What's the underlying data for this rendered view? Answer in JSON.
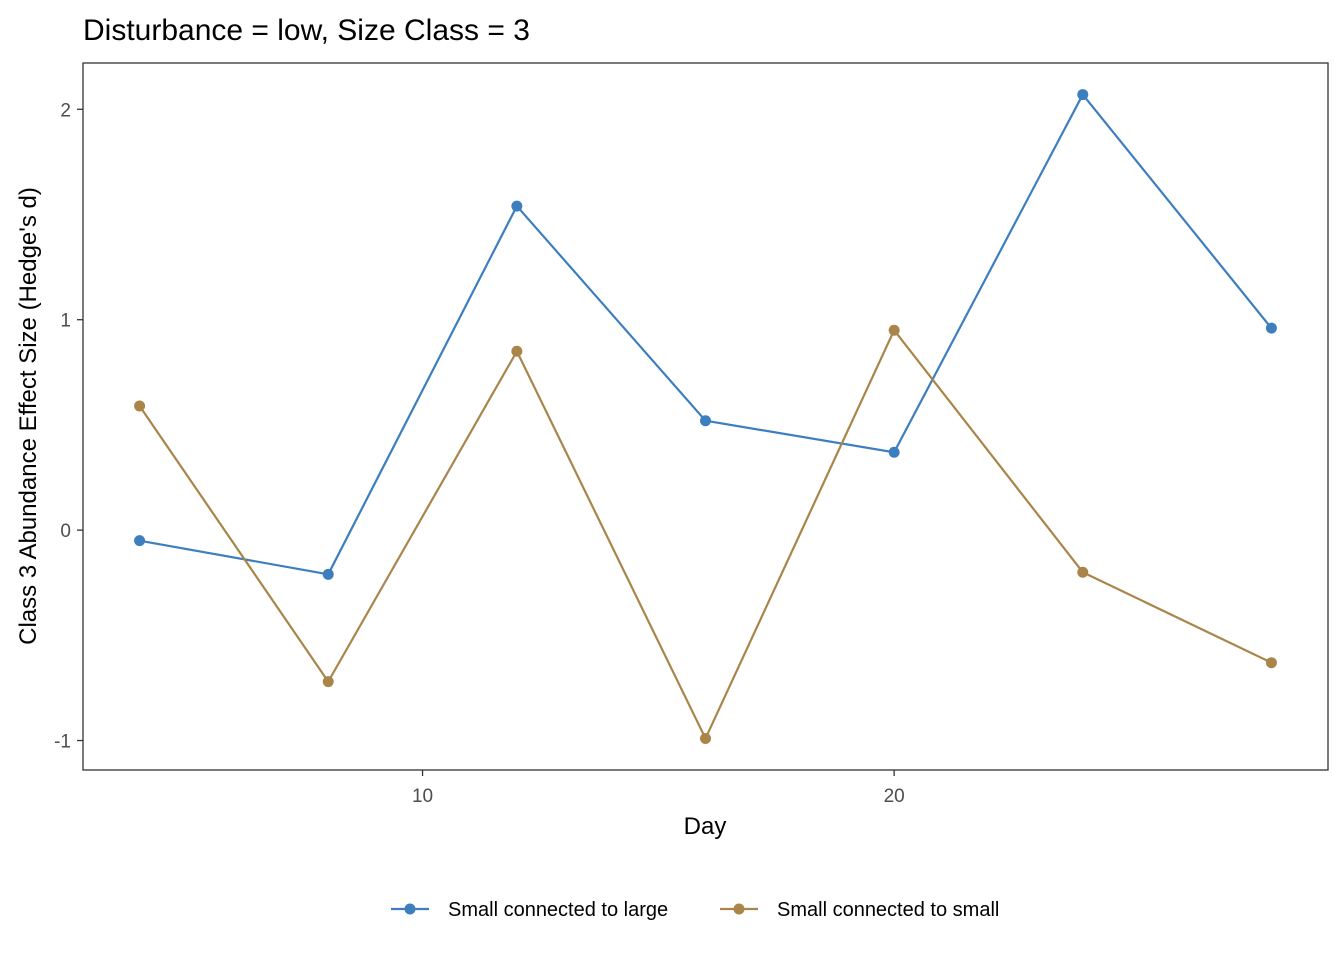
{
  "chart_data": {
    "type": "line",
    "title": "Disturbance = low, Size Class = 3",
    "xlabel": "Day",
    "ylabel": "Class 3 Abundance Effect Size (Hedge's d)",
    "x": [
      4,
      8,
      12,
      16,
      20,
      24,
      28
    ],
    "xlim": [
      2.8,
      29.2
    ],
    "ylim": [
      -1.14,
      2.22
    ],
    "x_ticks": [
      10,
      20
    ],
    "x_tick_labels": [
      "10",
      "20"
    ],
    "y_ticks": [
      -1,
      0,
      1,
      2
    ],
    "y_tick_labels": [
      "-1",
      "0",
      "1",
      "2"
    ],
    "grid": false,
    "legend_position": "bottom",
    "series": [
      {
        "name": "Small connected to large",
        "color": "#3d7ebf",
        "values": [
          -0.05,
          -0.21,
          1.54,
          0.52,
          0.37,
          2.07,
          0.96
        ]
      },
      {
        "name": "Small connected to small",
        "color": "#a9854a",
        "values": [
          0.59,
          -0.72,
          0.85,
          -0.99,
          0.95,
          -0.2,
          -0.63
        ]
      }
    ]
  }
}
